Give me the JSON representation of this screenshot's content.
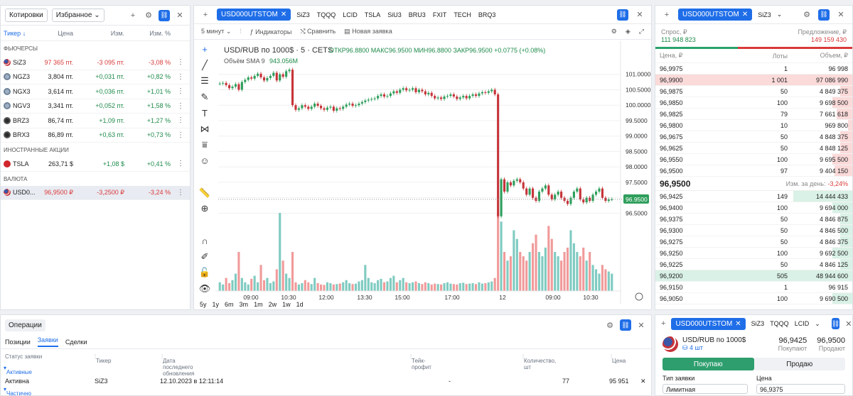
{
  "quotes": {
    "tab_label": "Котировки",
    "list_selector": "Избранное",
    "columns": [
      "Тикер",
      "Цена",
      "Изм.",
      "Изм. %"
    ],
    "sections": [
      {
        "title": "ФЬЮЧЕРСЫ",
        "rows": [
          {
            "ticker": "SiZ3",
            "price": "97 365 пт.",
            "change": "-3 095 пт.",
            "pct": "-3,08 %",
            "dir": "down",
            "flag": "us"
          },
          {
            "ticker": "NGZ3",
            "price": "3,804 пт.",
            "change": "+0,031 пт.",
            "pct": "+0,82 %",
            "dir": "up",
            "flag": "ng"
          },
          {
            "ticker": "NGX3",
            "price": "3,614 пт.",
            "change": "+0,036 пт.",
            "pct": "+1,01 %",
            "dir": "up",
            "flag": "ng"
          },
          {
            "ticker": "NGV3",
            "price": "3,341 пт.",
            "change": "+0,052 пт.",
            "pct": "+1,58 %",
            "dir": "up",
            "flag": "ng"
          },
          {
            "ticker": "BRZ3",
            "price": "86,74 пт.",
            "change": "+1,09 пт.",
            "pct": "+1,27 %",
            "dir": "up",
            "flag": "br"
          },
          {
            "ticker": "BRX3",
            "price": "86,89 пт.",
            "change": "+0,63 пт.",
            "pct": "+0,73 %",
            "dir": "up",
            "flag": "br"
          }
        ]
      },
      {
        "title": "ИНОСТРАННЫЕ АКЦИИ",
        "rows": [
          {
            "ticker": "TSLA",
            "price": "263,71 $",
            "change": "+1,08 $",
            "pct": "+0,41 %",
            "dir": "up",
            "flag": "tsla"
          }
        ]
      },
      {
        "title": "ВАЛЮТА",
        "rows": [
          {
            "ticker": "USD0...",
            "price": "96,9500 ₽",
            "change": "-3,2500 ₽",
            "pct": "-3,24 %",
            "dir": "down",
            "flag": "us",
            "selected": true
          }
        ]
      }
    ]
  },
  "chart": {
    "active_tab": "USD000UTSTOM",
    "tabs": [
      "SiZ3",
      "TQQQ",
      "LCID",
      "TSLA",
      "SiU3",
      "BRU3",
      "FXIT",
      "TECH",
      "BRQ3"
    ],
    "interval": "5 минут",
    "indicators_label": "Индикаторы",
    "compare_label": "Сравнить",
    "new_order_label": "Новая заявка",
    "title": "USD/RUB по 1000$ · 5 · CETS",
    "ohlc": "ОТКР96.8800  МАКС96.9500  МИН96.8800  ЗАКР96.9500  +0.0775 (+0.08%)",
    "volume_label": "Объём SMA 9",
    "volume_value": "943.056M",
    "last_price_badge": "96.9500",
    "timeframes": [
      "5y",
      "1y",
      "6m",
      "3m",
      "1m",
      "2w",
      "1w",
      "1d"
    ],
    "colors": {
      "up": "#2e9e5b",
      "down": "#c6343a",
      "vol_up": "#7fcbc1",
      "vol_down": "#f19a9a",
      "badge": "#2e9e5b"
    }
  },
  "chart_data": {
    "type": "candlestick",
    "y_ticks": [
      101.0,
      100.5,
      100.0,
      99.5,
      99.0,
      98.5,
      98.0,
      97.5,
      97.0,
      96.5
    ],
    "ylim": [
      96.05,
      101.2
    ],
    "x_ticks": [
      "09:00",
      "10:30",
      "12:00",
      "13:30",
      "15:00",
      "17:00",
      "12",
      "09:00",
      "10:30"
    ],
    "series": [
      {
        "name": "USD/RUB",
        "values": [
          100.7,
          100.72,
          100.65,
          100.55,
          100.6,
          100.68,
          100.5,
          100.75,
          100.82,
          100.9,
          100.86,
          100.95,
          101.02,
          100.9,
          100.8,
          100.88,
          100.95,
          101.05,
          100.8,
          101.0,
          100.92,
          101.1,
          101.15,
          100.0,
          99.85,
          99.9,
          100.0,
          99.95,
          99.88,
          99.95,
          100.05,
          99.98,
          99.9,
          99.85,
          99.92,
          99.95,
          99.82,
          99.9,
          99.88,
          99.95,
          100.02,
          100.05,
          99.98,
          100.0,
          100.05,
          100.1,
          100.15,
          100.18,
          100.2,
          100.22,
          100.3,
          100.35,
          100.28,
          100.3,
          100.38,
          100.45,
          100.4,
          100.5,
          100.55,
          100.48,
          100.5,
          100.55,
          100.42,
          100.5,
          100.45,
          100.35,
          100.4,
          100.3,
          100.22,
          100.25,
          100.2,
          100.28,
          100.3,
          100.35,
          100.28,
          100.2,
          100.25,
          100.3,
          100.22,
          100.3,
          100.35,
          100.3,
          100.38,
          100.42,
          100.4,
          100.45,
          100.5,
          100.35,
          96.4,
          97.6,
          97.2,
          97.5,
          97.4,
          97.55,
          97.6,
          97.5,
          97.3,
          97.1,
          97.3,
          97.0,
          96.9,
          97.2,
          97.3,
          97.4,
          97.1,
          96.95,
          97.1,
          97.2,
          97.0,
          96.9,
          96.8,
          97.0,
          97.2,
          97.3,
          96.95,
          96.85,
          97.0,
          96.9,
          97.1,
          97.2,
          97.3,
          97.0,
          96.9,
          96.95,
          96.95
        ],
        "volume_m": [
          200,
          150,
          300,
          180,
          250,
          400,
          900,
          300,
          200,
          150,
          280,
          350,
          200,
          600,
          250,
          300,
          180,
          220,
          500,
          1800,
          700,
          400,
          300,
          900,
          200,
          150,
          180,
          250,
          200,
          160,
          300,
          180,
          150,
          140,
          200,
          180,
          150,
          160,
          170,
          200,
          250,
          180,
          160,
          170,
          220,
          250,
          600,
          300,
          200,
          180,
          250,
          280,
          200,
          220,
          300,
          350,
          200,
          250,
          300,
          200,
          180,
          200,
          220,
          180,
          160,
          200,
          180,
          150,
          170,
          160,
          150,
          180,
          200,
          170,
          160,
          150,
          180,
          190,
          160,
          170,
          180,
          160,
          200,
          170,
          180,
          200,
          220,
          300,
          1800,
          1600,
          900,
          700,
          800,
          1400,
          1200,
          900,
          800,
          700,
          900,
          1100,
          1300,
          900,
          800,
          1000,
          1500,
          1200,
          900,
          800,
          700,
          900,
          1000,
          1400,
          1100,
          900,
          800,
          1000,
          700,
          900,
          600,
          500,
          400,
          600,
          500,
          450,
          400
        ]
      }
    ]
  },
  "orderbook": {
    "active_tab": "USD000UTSTOM",
    "tabs": [
      "SiZ3"
    ],
    "bid_label": "Спрос, ₽",
    "bid_total": "111 948 823",
    "ask_label": "Предложение, ₽",
    "ask_total": "149 159 430",
    "columns": [
      "Цена, ₽",
      "Лоты",
      "Объем, ₽"
    ],
    "asks": [
      {
        "price": "96,9975",
        "lots": "1",
        "vol": "96 998",
        "pct": 0
      },
      {
        "price": "96,9900",
        "lots": "1 001",
        "vol": "97 086 990",
        "pct": 100
      },
      {
        "price": "96,9875",
        "lots": "50",
        "vol": "4 849 375",
        "pct": 6
      },
      {
        "price": "96,9850",
        "lots": "100",
        "vol": "9 698 500",
        "pct": 10
      },
      {
        "price": "96,9825",
        "lots": "79",
        "vol": "7 661 618",
        "pct": 8
      },
      {
        "price": "96,9800",
        "lots": "10",
        "vol": "969 800",
        "pct": 2
      },
      {
        "price": "96,9675",
        "lots": "50",
        "vol": "4 848 375",
        "pct": 6
      },
      {
        "price": "96,9625",
        "lots": "50",
        "vol": "4 848 125",
        "pct": 6
      },
      {
        "price": "96,9550",
        "lots": "100",
        "vol": "9 695 500",
        "pct": 10
      },
      {
        "price": "96,9500",
        "lots": "97",
        "vol": "9 404 150",
        "pct": 9
      }
    ],
    "mid_price": "96,9500",
    "day_change_label": "Изм. за день:",
    "day_change": "-3,24%",
    "bids": [
      {
        "price": "96,9425",
        "lots": "149",
        "vol": "14 444 433",
        "pct": 30
      },
      {
        "price": "96,9400",
        "lots": "100",
        "vol": "9 694 000",
        "pct": 10
      },
      {
        "price": "96,9375",
        "lots": "50",
        "vol": "4 846 875",
        "pct": 6
      },
      {
        "price": "96,9300",
        "lots": "50",
        "vol": "4 846 500",
        "pct": 6
      },
      {
        "price": "96,9275",
        "lots": "50",
        "vol": "4 846 375",
        "pct": 6
      },
      {
        "price": "96,9250",
        "lots": "100",
        "vol": "9 692 500",
        "pct": 10
      },
      {
        "price": "96,9225",
        "lots": "50",
        "vol": "4 846 125",
        "pct": 6
      },
      {
        "price": "96,9200",
        "lots": "505",
        "vol": "48 944 600",
        "pct": 100
      },
      {
        "price": "96,9150",
        "lots": "1",
        "vol": "96 915",
        "pct": 0
      },
      {
        "price": "96,9050",
        "lots": "100",
        "vol": "9 690 500",
        "pct": 10
      }
    ],
    "colors": {
      "ask_bar": "#fbdada",
      "bid_bar": "#d9f1e6",
      "bid_line": "#27a36a",
      "ask_line": "#d93a3a"
    }
  },
  "operations": {
    "title": "Операции",
    "tabs": [
      "Позиции",
      "Заявки",
      "Сделки"
    ],
    "active_tab": "Заявки",
    "columns": [
      "Статус заявки",
      "Тикер",
      "Дата последнего обновления",
      "Тейк-профит",
      "Количество, шт",
      "Цена"
    ],
    "group_active": "Активные",
    "row": {
      "status": "Активна",
      "ticker": "SiZ3",
      "date": "12.10.2023 в 12:11:14",
      "tp": "-",
      "qty": "77",
      "price": "95 951"
    },
    "group_partial": "Частично исполненные"
  },
  "trade": {
    "active_tab": "USD000UTSTOM",
    "tabs": [
      "SiZ3",
      "TQQQ",
      "LCID"
    ],
    "instrument": "USD/RUB по 1000$",
    "holding": "4 шт",
    "bid_price": "96,9425",
    "bid_label": "Покупают",
    "ask_price": "96,9500",
    "ask_label": "Продают",
    "buy_label": "Покупаю",
    "sell_label": "Продаю",
    "order_type_label": "Тип заявки",
    "order_type": "Лимитная",
    "price_label": "Цена",
    "price_value": "96,9375"
  }
}
